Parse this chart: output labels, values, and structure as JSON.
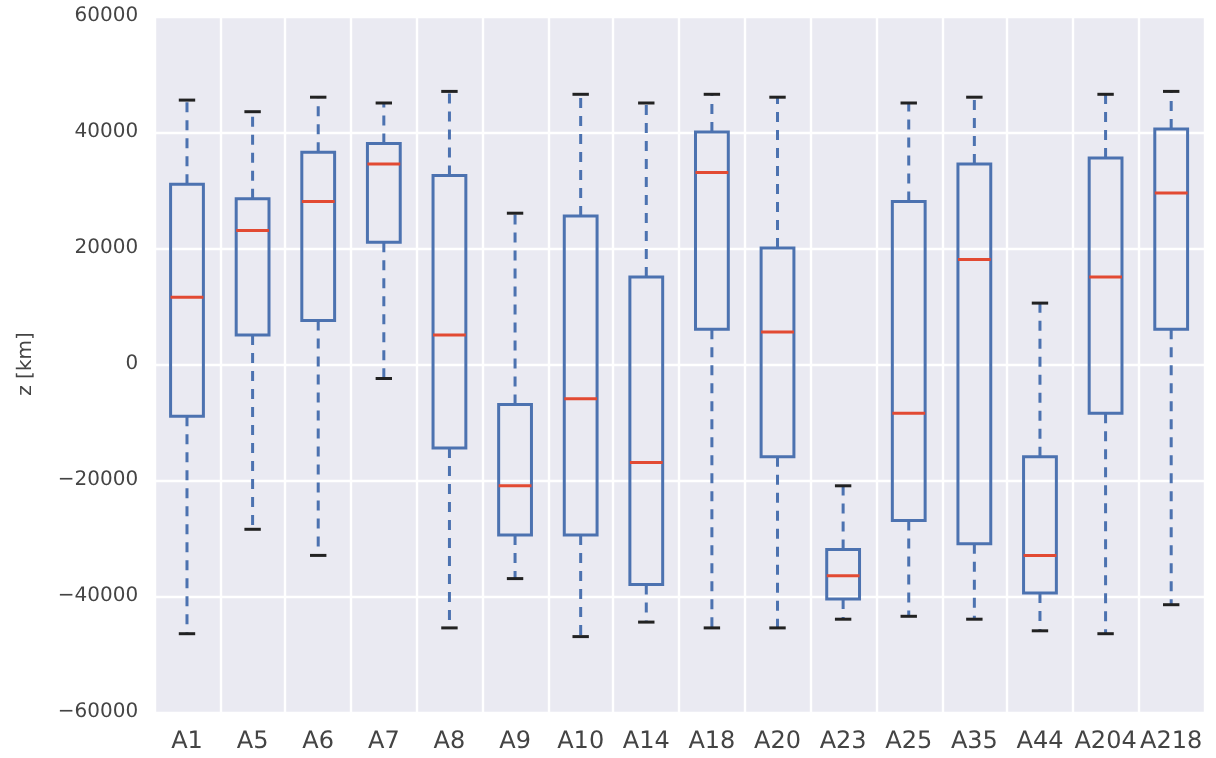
{
  "chart_data": {
    "type": "box",
    "ylabel": "z [km]",
    "categories": [
      "A1",
      "A5",
      "A6",
      "A7",
      "A8",
      "A9",
      "A10",
      "A14",
      "A18",
      "A20",
      "A23",
      "A25",
      "A35",
      "A44",
      "A204",
      "A218"
    ],
    "series": [
      {
        "color": "#4c72b0",
        "boxes": [
          {
            "low": -46500,
            "q1": -9000,
            "median": 11500,
            "q3": 31000,
            "high": 45500
          },
          {
            "low": -28500,
            "q1": 5000,
            "median": 23000,
            "q3": 28500,
            "high": 43500
          },
          {
            "low": -33000,
            "q1": 7500,
            "median": 28000,
            "q3": 36500,
            "high": 46000
          },
          {
            "low": -2500,
            "q1": 21000,
            "median": 34500,
            "q3": 38000,
            "high": 45000
          },
          {
            "low": -45500,
            "q1": -14500,
            "median": 5000,
            "q3": 32500,
            "high": 47000
          },
          {
            "low": -37000,
            "q1": -29500,
            "median": -21000,
            "q3": -7000,
            "high": 26000
          },
          {
            "low": -47000,
            "q1": -29500,
            "median": -6000,
            "q3": 25500,
            "high": 46500
          },
          {
            "low": -44500,
            "q1": -38000,
            "median": -17000,
            "q3": 15000,
            "high": 45000
          },
          {
            "low": -45500,
            "q1": 6000,
            "median": 33000,
            "q3": 40000,
            "high": 46500
          },
          {
            "low": -45500,
            "q1": -16000,
            "median": 5500,
            "q3": 20000,
            "high": 46000
          },
          {
            "low": -44000,
            "q1": -40500,
            "median": -36500,
            "q3": -32000,
            "high": -21000
          },
          {
            "low": -43500,
            "q1": -27000,
            "median": -8500,
            "q3": 28000,
            "high": 45000
          },
          {
            "low": -44000,
            "q1": -31000,
            "median": 18000,
            "q3": 34500,
            "high": 46000
          },
          {
            "low": -46000,
            "q1": -39500,
            "median": -33000,
            "q3": -16000,
            "high": 10500
          },
          {
            "low": -46500,
            "q1": -8500,
            "median": 15000,
            "q3": 35500,
            "high": 46500
          },
          {
            "low": -41500,
            "q1": 6000,
            "median": 29500,
            "q3": 40500,
            "high": 47000
          }
        ]
      }
    ],
    "ylim": [
      -60000,
      60000
    ],
    "yticks": [
      -60000,
      -40000,
      -20000,
      0,
      20000,
      40000,
      60000
    ],
    "grid": true
  }
}
